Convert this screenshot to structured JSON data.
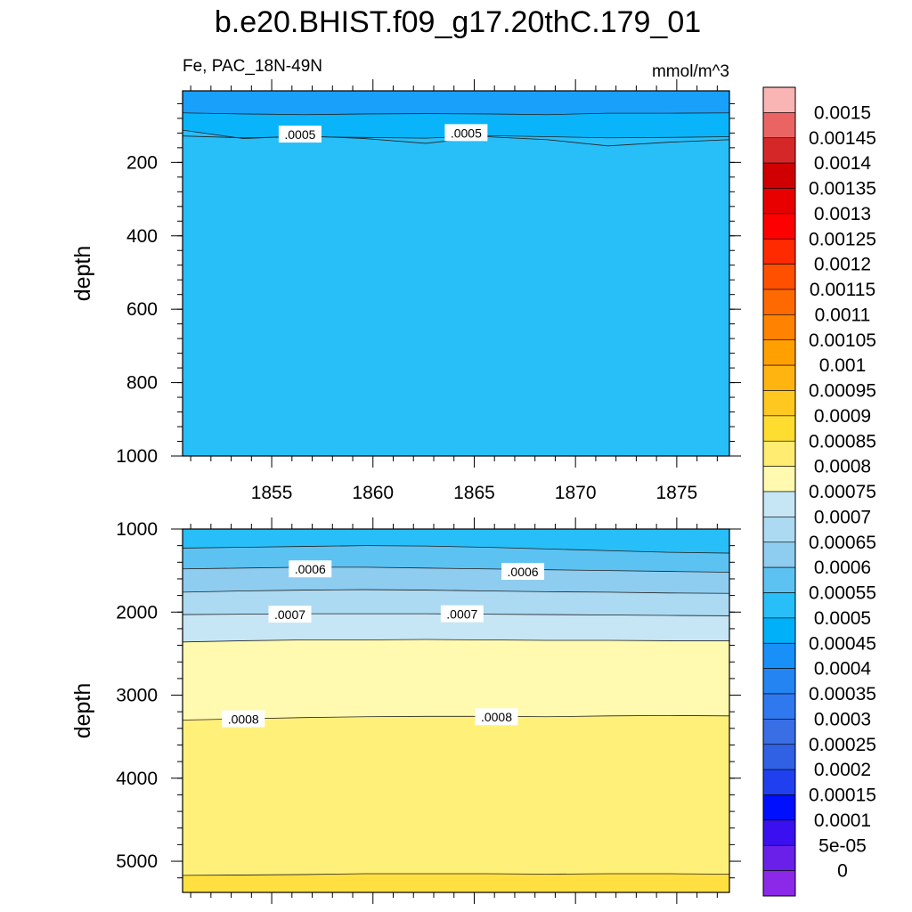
{
  "title": "b.e20.BHIST.f09_g17.20thC.179_01",
  "subtitle_left": "Fe, PAC_18N-49N",
  "subtitle_right": "mmol/m^3",
  "chart_data": [
    {
      "type": "contour",
      "panel": "upper",
      "ylabel": "depth",
      "xlim": [
        1850.6,
        1877.6
      ],
      "ylim": [
        1000,
        5
      ],
      "y_ticks": [
        200,
        400,
        600,
        800,
        1000
      ],
      "x_ticks": [
        1855,
        1860,
        1865,
        1870,
        1875
      ],
      "levels": [
        {
          "value": 0.0004,
          "depth": [
            65,
            68,
            70,
            68,
            67,
            68,
            70,
            66,
            66,
            65
          ],
          "line": false
        },
        {
          "value": 0.00045,
          "depth": [
            128,
            133,
            130,
            132,
            134,
            127,
            130,
            133,
            132,
            130
          ],
          "line": true
        },
        {
          "value": 0.0005,
          "depth": [
            112,
            135,
            128,
            135,
            148,
            130,
            138,
            155,
            145,
            138
          ],
          "line": true
        }
      ],
      "contour_labels": [
        {
          "text": ".0005",
          "x": 1856.4,
          "y": 124
        },
        {
          "text": ".0005",
          "x": 1864.6,
          "y": 120
        }
      ]
    },
    {
      "type": "contour",
      "panel": "lower",
      "ylabel": "depth",
      "xlim": [
        1850.6,
        1877.6
      ],
      "ylim": [
        5375,
        1000
      ],
      "y_ticks": [
        1000,
        2000,
        3000,
        4000,
        5000
      ],
      "levels": [
        {
          "value": 0.00055,
          "depth": [
            1230,
            1220,
            1210,
            1200,
            1205,
            1220,
            1240,
            1260,
            1280,
            1290
          ],
          "line": true
        },
        {
          "value": 0.0006,
          "depth": [
            1480,
            1470,
            1460,
            1460,
            1470,
            1480,
            1490,
            1500,
            1510,
            1520
          ],
          "line": true
        },
        {
          "value": 0.00065,
          "depth": [
            1760,
            1745,
            1735,
            1730,
            1735,
            1745,
            1755,
            1760,
            1770,
            1775
          ],
          "line": true
        },
        {
          "value": 0.0007,
          "depth": [
            2030,
            2025,
            2020,
            2020,
            2020,
            2025,
            2030,
            2035,
            2040,
            2045
          ],
          "line": true
        },
        {
          "value": 0.00075,
          "depth": [
            2360,
            2345,
            2335,
            2335,
            2330,
            2335,
            2340,
            2340,
            2345,
            2345
          ],
          "line": true
        },
        {
          "value": 0.0008,
          "depth": [
            3300,
            3285,
            3270,
            3260,
            3255,
            3255,
            3260,
            3250,
            3245,
            3250
          ],
          "line": true
        },
        {
          "value": 0.00085,
          "depth": [
            5170,
            5165,
            5160,
            5150,
            5150,
            5150,
            5155,
            5150,
            5150,
            5155
          ],
          "line": true
        }
      ],
      "contour_labels": [
        {
          "text": ".0006",
          "x": 1856.9,
          "y": 1485
        },
        {
          "text": ".0006",
          "x": 1867.4,
          "y": 1515
        },
        {
          "text": ".0007",
          "x": 1855.9,
          "y": 2030
        },
        {
          "text": ".0007",
          "x": 1864.4,
          "y": 2025
        },
        {
          "text": ".0008",
          "x": 1853.6,
          "y": 3290
        },
        {
          "text": ".0008",
          "x": 1866.1,
          "y": 3265
        }
      ]
    }
  ],
  "colorbar": {
    "levels": [
      "0.0015",
      "0.00145",
      "0.0014",
      "0.00135",
      "0.0013",
      "0.00125",
      "0.0012",
      "0.00115",
      "0.0011",
      "0.00105",
      "0.001",
      "0.00095",
      "0.0009",
      "0.00085",
      "0.0008",
      "0.00075",
      "0.0007",
      "0.00065",
      "0.0006",
      "0.00055",
      "0.0005",
      "0.00045",
      "0.0004",
      "0.00035",
      "0.0003",
      "0.00025",
      "0.0002",
      "0.00015",
      "0.0001",
      "5e-05",
      "0"
    ],
    "colors": [
      "#F9B4B4",
      "#EB6464",
      "#D62728",
      "#D00000",
      "#E80000",
      "#FF0000",
      "#FF2A00",
      "#FF5000",
      "#FF6A00",
      "#FF8200",
      "#FFA000",
      "#FFB410",
      "#FFC820",
      "#FFDC30",
      "#FFEC70",
      "#FFFAB0",
      "#C6E6F5",
      "#ACDAF2",
      "#8ECCF0",
      "#5CC2F2",
      "#28BEF8",
      "#00B0F8",
      "#1890F8",
      "#2384F2",
      "#3078EE",
      "#3A6EE4",
      "#3060E4",
      "#2040F0",
      "#0010FF",
      "#3A10F0",
      "#6A20E8",
      "#8C28E8"
    ]
  },
  "colors": {
    "0.0004": "#18A0FA",
    "0.00045": "#0AB4FA",
    "0.0005": "#28BEF8",
    "0.00055": "#5CC2F2",
    "0.0006": "#8ECCF0",
    "0.00065": "#ACDAF2",
    "0.0007": "#C6E6F5",
    "0.00075": "#FFFAB0",
    "0.0008": "#FFF07A",
    "0.00085": "#FFE040"
  }
}
